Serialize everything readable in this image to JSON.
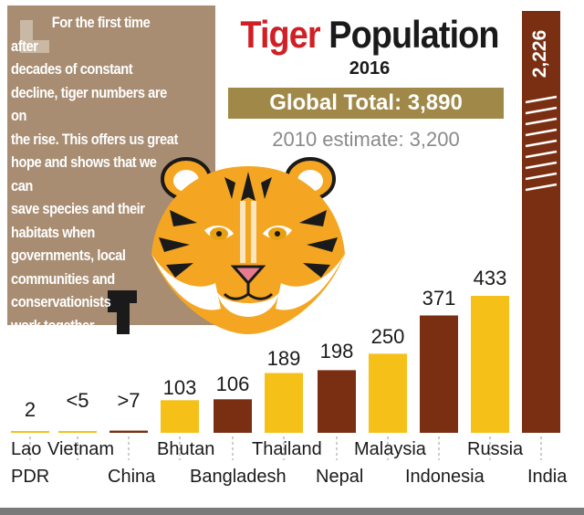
{
  "quote": {
    "line_first": "For the first time after",
    "text_rest": "decades of constant\ndecline, tiger numbers are on\nthe rise. This offers us great\nhope and shows that we can\nsave species and their\nhabitats when\ngovernments, local\ncommunities and\nconservationists\nwork together"
  },
  "header": {
    "title_part1": "Tiger",
    "title_part2": "Population",
    "year": "2016",
    "global_total": "Global Total: 3,890",
    "estimate_2010": "2010 estimate: 3,200"
  },
  "colors": {
    "yellow": "#f5c118",
    "brown": "#7a2e12",
    "quote_box": "#a88d72",
    "global_bar": "#a08948",
    "title_red": "#d02026"
  },
  "chart_data": {
    "type": "bar",
    "title": "Tiger Population",
    "subtitle": "2016",
    "categories": [
      "Lao PDR",
      "Vietnam",
      "China",
      "Bhutan",
      "Bangladesh",
      "Thailand",
      "Nepal",
      "Malaysia",
      "Indonesia",
      "Russia",
      "India"
    ],
    "category_lines": [
      [
        "Lao",
        "PDR"
      ],
      [
        "Vietnam"
      ],
      [
        "China"
      ],
      [
        "Bhutan"
      ],
      [
        "Bangladesh"
      ],
      [
        "Thailand"
      ],
      [
        "Nepal"
      ],
      [
        "Malaysia"
      ],
      [
        "Indonesia"
      ],
      [
        "Russia"
      ],
      [
        "India"
      ]
    ],
    "values": [
      2,
      5,
      7,
      103,
      106,
      189,
      198,
      250,
      371,
      433,
      2226
    ],
    "value_labels": [
      "2",
      "<5",
      ">7",
      "103",
      "106",
      "189",
      "198",
      "250",
      "371",
      "433",
      "2,226"
    ],
    "bar_colors": [
      "yellow",
      "yellow",
      "brown",
      "yellow",
      "brown",
      "yellow",
      "brown",
      "yellow",
      "brown",
      "yellow",
      "brown"
    ],
    "ylim": [
      0,
      2226
    ],
    "scale_note": "India bar is broken (axis break); bars are not to a single linear scale",
    "grid": false,
    "legend": "none"
  }
}
